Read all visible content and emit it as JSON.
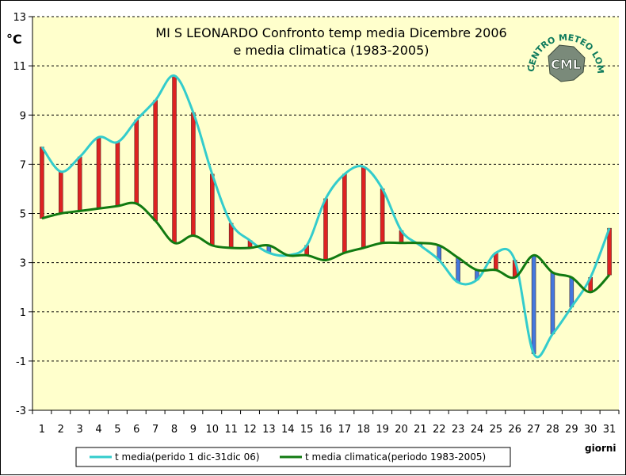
{
  "chart_data": {
    "type": "line",
    "title": "MI S LEONARDO Confronto temp media Dicembre 2006",
    "subtitle": "e media climatica (1983-2005)",
    "ylabel": "°C",
    "xlabel": "giorni",
    "ylim": [
      -3,
      13
    ],
    "yticks": [
      -3,
      -1,
      1,
      3,
      5,
      7,
      9,
      11,
      13
    ],
    "grid": true,
    "legend_position": "bottom",
    "x": [
      1,
      2,
      3,
      4,
      5,
      6,
      7,
      8,
      9,
      10,
      11,
      12,
      13,
      14,
      15,
      16,
      17,
      18,
      19,
      20,
      21,
      22,
      23,
      24,
      25,
      26,
      27,
      28,
      29,
      30,
      31
    ],
    "series": [
      {
        "name": "t media(perido 1 dic-31dic 06)",
        "color": "#33cccc",
        "values": [
          7.7,
          6.7,
          7.3,
          8.1,
          7.9,
          8.8,
          9.6,
          10.6,
          9.1,
          6.6,
          4.6,
          3.9,
          3.4,
          3.3,
          3.7,
          5.6,
          6.6,
          6.9,
          6.0,
          4.3,
          3.7,
          3.1,
          2.2,
          2.3,
          3.4,
          3.1,
          -0.7,
          0.1,
          1.2,
          2.4,
          4.4
        ]
      },
      {
        "name": "t media climatica(periodo 1983-2005)",
        "color": "#117a11",
        "values": [
          4.8,
          5.0,
          5.1,
          5.2,
          5.3,
          5.4,
          4.7,
          3.8,
          4.1,
          3.7,
          3.6,
          3.6,
          3.7,
          3.3,
          3.3,
          3.1,
          3.4,
          3.6,
          3.8,
          3.8,
          3.8,
          3.7,
          3.2,
          2.7,
          2.7,
          2.4,
          3.3,
          2.6,
          2.4,
          1.8,
          2.5
        ]
      }
    ],
    "difference_bars": {
      "warmer_color": "#dd2222",
      "colder_color": "#4477dd"
    }
  },
  "logo": {
    "arc_text": "CENTRO METEO LOMBARDO",
    "badge": "CML"
  }
}
